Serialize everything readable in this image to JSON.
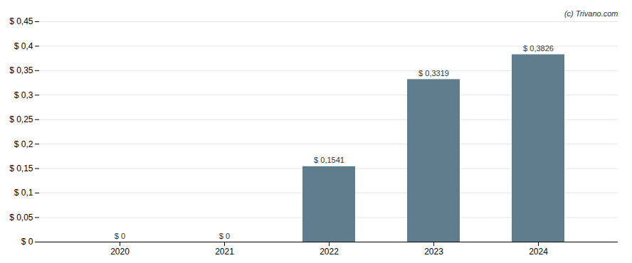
{
  "chart_data": {
    "type": "bar",
    "categories": [
      "2020",
      "2021",
      "2022",
      "2023",
      "2024"
    ],
    "values": [
      0,
      0,
      0.1541,
      0.3319,
      0.3826
    ],
    "value_labels": [
      "$ 0",
      "$ 0",
      "$ 0,1541",
      "$ 0,3319",
      "$ 0,3826"
    ],
    "data_labels": true,
    "color": "#5f7d8c",
    "ylim": [
      0,
      0.45
    ],
    "yticks": [
      {
        "value": 0,
        "label": "$ 0"
      },
      {
        "value": 0.05,
        "label": "$ 0,05"
      },
      {
        "value": 0.1,
        "label": "$ 0,1"
      },
      {
        "value": 0.15,
        "label": "$ 0,15"
      },
      {
        "value": 0.2,
        "label": "$ 0,2"
      },
      {
        "value": 0.25,
        "label": "$ 0,25"
      },
      {
        "value": 0.3,
        "label": "$ 0,3"
      },
      {
        "value": 0.35,
        "label": "$ 0,35"
      },
      {
        "value": 0.4,
        "label": "$ 0,4"
      },
      {
        "value": 0.45,
        "label": "$ 0,45"
      }
    ],
    "grid": true,
    "annotation": "(c) Trivano.com"
  }
}
